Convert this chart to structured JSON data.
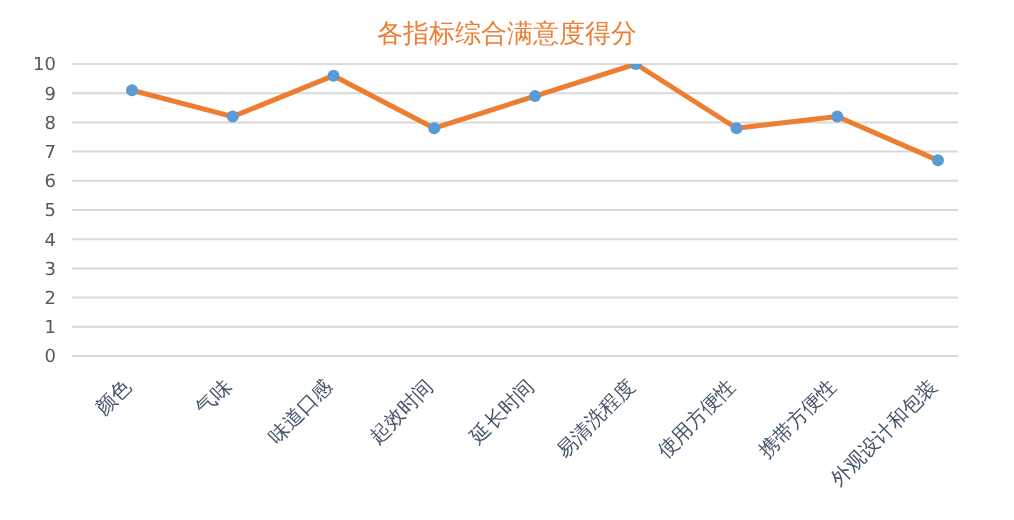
{
  "chart_data": {
    "type": "line",
    "title": "各指标综合满意度得分",
    "categories": [
      "颜色",
      "气味",
      "味道口感",
      "起效时间",
      "延长时间",
      "易清洗程度",
      "使用方便性",
      "携带方便性",
      "外观设计和包装"
    ],
    "series": [
      {
        "color": "#ed7d31",
        "values": [
          9.1,
          8.2,
          9.6,
          7.8,
          8.9,
          10.0,
          7.8,
          8.2,
          6.7
        ]
      }
    ],
    "ylim": [
      0,
      10
    ],
    "yticks": [
      0,
      1,
      2,
      3,
      4,
      5,
      6,
      7,
      8,
      9,
      10
    ],
    "grid": "y",
    "marker": "circle"
  }
}
